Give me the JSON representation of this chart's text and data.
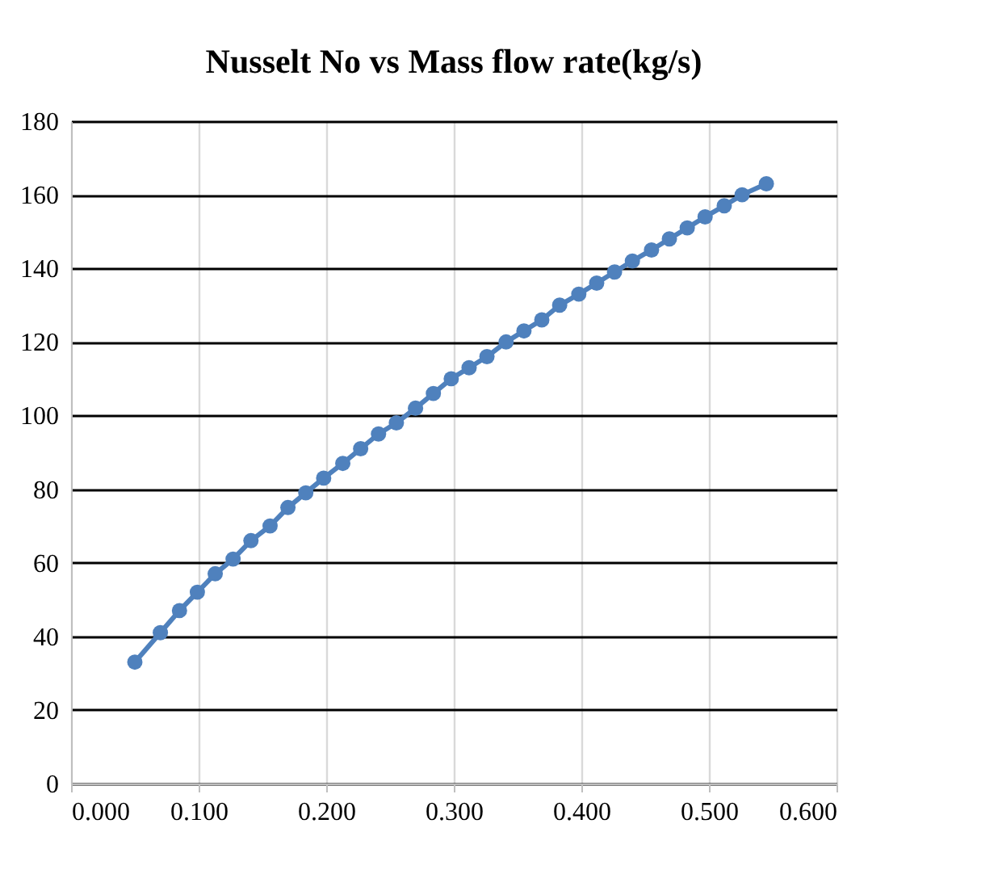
{
  "chart_data": {
    "type": "line",
    "title": "Nusselt No vs Mass flow rate(kg/s)",
    "x": [
      0.05,
      0.07,
      0.085,
      0.099,
      0.113,
      0.127,
      0.141,
      0.156,
      0.17,
      0.184,
      0.198,
      0.213,
      0.227,
      0.241,
      0.255,
      0.27,
      0.284,
      0.298,
      0.312,
      0.326,
      0.341,
      0.355,
      0.369,
      0.383,
      0.398,
      0.412,
      0.426,
      0.44,
      0.455,
      0.469,
      0.483,
      0.497,
      0.512,
      0.526,
      0.545
    ],
    "series": [
      {
        "color": "#4f81bd",
        "values": [
          33,
          41,
          47,
          52,
          57,
          61,
          66,
          70,
          75,
          79,
          83,
          87,
          91,
          95,
          98,
          102,
          106,
          110,
          113,
          116,
          120,
          123,
          126,
          130,
          133,
          136,
          139,
          142,
          145,
          148,
          151,
          154,
          157,
          160,
          163
        ]
      }
    ],
    "xlim": [
      0,
      0.6
    ],
    "xticks": [
      {
        "value": 0,
        "label": "0.000"
      },
      {
        "value": 0.1,
        "label": "0.100"
      },
      {
        "value": 0.2,
        "label": "0.200"
      },
      {
        "value": 0.3,
        "label": "0.300"
      },
      {
        "value": 0.4,
        "label": "0.400"
      },
      {
        "value": 0.5,
        "label": "0.500"
      },
      {
        "value": 0.6,
        "label": "0.600"
      }
    ],
    "ylim": [
      0,
      180
    ],
    "yticks": [
      0,
      20,
      40,
      60,
      80,
      100,
      120,
      140,
      160,
      180
    ],
    "grid": true,
    "marker": "circle",
    "line_style": "solid"
  }
}
